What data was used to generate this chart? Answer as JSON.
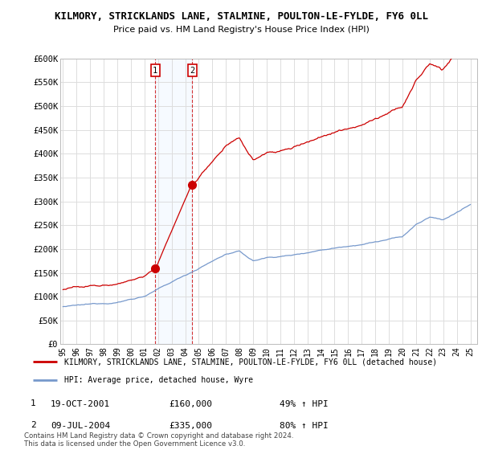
{
  "title": "KILMORY, STRICKLANDS LANE, STALMINE, POULTON-LE-FYLDE, FY6 0LL",
  "subtitle": "Price paid vs. HM Land Registry's House Price Index (HPI)",
  "ylim": [
    0,
    600000
  ],
  "yticks": [
    0,
    50000,
    100000,
    150000,
    200000,
    250000,
    300000,
    350000,
    400000,
    450000,
    500000,
    550000,
    600000
  ],
  "ytick_labels": [
    "£0",
    "£50K",
    "£100K",
    "£150K",
    "£200K",
    "£250K",
    "£300K",
    "£350K",
    "£400K",
    "£450K",
    "£500K",
    "£550K",
    "£600K"
  ],
  "sale1_date": 2001.8,
  "sale1_price": 160000,
  "sale1_label": "1",
  "sale2_date": 2004.52,
  "sale2_price": 335000,
  "sale2_label": "2",
  "red_line_label": "KILMORY, STRICKLANDS LANE, STALMINE, POULTON-LE-FYLDE, FY6 0LL (detached house)",
  "blue_line_label": "HPI: Average price, detached house, Wyre",
  "legend_entries": [
    {
      "num": "1",
      "date": "19-OCT-2001",
      "price": "£160,000",
      "change": "49% ↑ HPI"
    },
    {
      "num": "2",
      "date": "09-JUL-2004",
      "price": "£335,000",
      "change": "80% ↑ HPI"
    }
  ],
  "footnote": "Contains HM Land Registry data © Crown copyright and database right 2024.\nThis data is licensed under the Open Government Licence v3.0.",
  "background_color": "#ffffff",
  "grid_color": "#dddddd",
  "red_color": "#cc0000",
  "blue_color": "#7799cc",
  "vline_color": "#cc0000",
  "span_color": "#ddeeff"
}
